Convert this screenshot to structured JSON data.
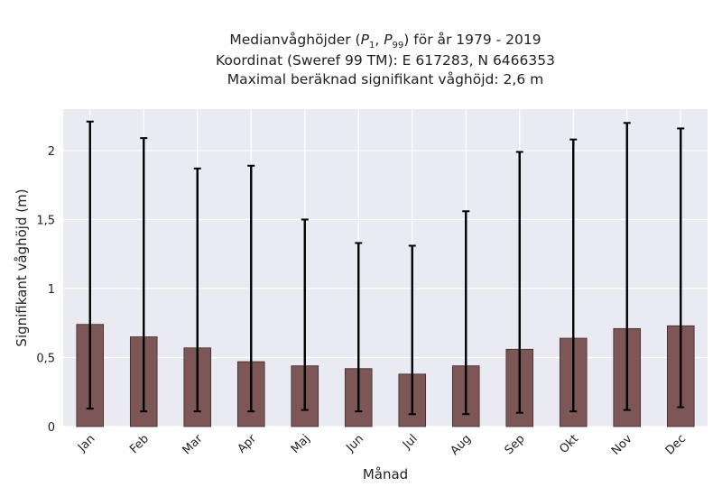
{
  "chart_data": {
    "type": "bar",
    "title": "Medianvåghöjder (P1, P99) för år 1979 - 2019",
    "title_parts": {
      "prefix": "Medianvåghöjder (",
      "p1_base": "P",
      "p1_sub": "1",
      "separator": ", ",
      "p99_base": "P",
      "p99_sub": "99",
      "suffix": ") för år 1979 - 2019"
    },
    "subtitle_lines": [
      "Koordinat (Sweref 99 TM): E 617283, N 6466353",
      "Maximal beräknad signifikant våghöjd: 2,6 m"
    ],
    "xlabel": "Månad",
    "ylabel": "Signifikant våghöjd (m)",
    "categories": [
      "Jan",
      "Feb",
      "Mar",
      "Apr",
      "Maj",
      "Jun",
      "Jul",
      "Aug",
      "Sep",
      "Okt",
      "Nov",
      "Dec"
    ],
    "series": [
      {
        "values": [
          0.74,
          0.65,
          0.57,
          0.47,
          0.44,
          0.42,
          0.38,
          0.44,
          0.56,
          0.64,
          0.71,
          0.73
        ],
        "error_low": [
          0.13,
          0.11,
          0.11,
          0.11,
          0.12,
          0.11,
          0.09,
          0.09,
          0.1,
          0.11,
          0.12,
          0.14
        ],
        "error_high": [
          2.21,
          2.09,
          1.87,
          1.89,
          1.5,
          1.33,
          1.31,
          1.56,
          1.99,
          2.08,
          2.2,
          2.16
        ]
      }
    ],
    "ylim": [
      0,
      2.3
    ],
    "yticks": [
      0,
      0.5,
      1,
      1.5,
      2
    ],
    "ytick_labels": [
      "0",
      "0,5",
      "1",
      "1,5",
      "2"
    ],
    "grid": true,
    "colors": {
      "bar": "#7d5656",
      "bar_edge": "#3a2a2a",
      "error": "#000000",
      "plot_bg": "#eaeaf2",
      "grid": "#ffffff"
    }
  }
}
